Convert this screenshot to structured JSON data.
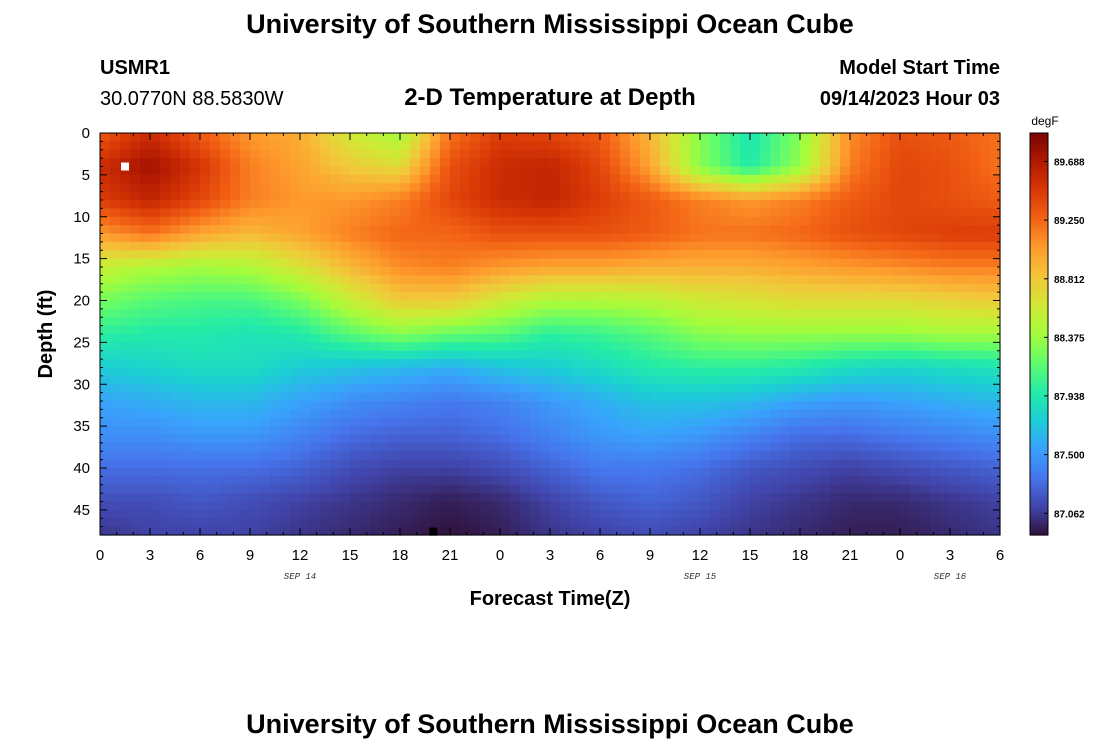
{
  "header": {
    "title": "University of Southern Mississippi Ocean Cube",
    "station_id": "USMR1",
    "station_coords": "30.0770N  88.5830W",
    "model_start_label": "Model Start Time",
    "model_start_value": "09/14/2023 Hour 03"
  },
  "footer": {
    "title": "University of Southern Mississippi Ocean Cube"
  },
  "chart_data": {
    "type": "heatmap",
    "title": "2-D Temperature at Depth",
    "xlabel": "Forecast Time(Z)",
    "ylabel": "Depth (ft)",
    "x_tick_labels": [
      "0",
      "3",
      "6",
      "9",
      "12",
      "15",
      "18",
      "21",
      "0",
      "3",
      "6",
      "9",
      "12",
      "15",
      "18",
      "21",
      "0",
      "3",
      "6"
    ],
    "x_range_hours": [
      0,
      54
    ],
    "day_labels": [
      {
        "label": "SEP 14",
        "hour": 12
      },
      {
        "label": "SEP 15",
        "hour": 36
      },
      {
        "label": "SEP 16",
        "hour": 51
      }
    ],
    "y_tick_labels": [
      "0",
      "5",
      "10",
      "15",
      "20",
      "25",
      "30",
      "35",
      "40",
      "45"
    ],
    "y_range_ft": [
      0,
      48
    ],
    "colorbar": {
      "unit": "degF",
      "labels": [
        "89.688",
        "89.250",
        "88.812",
        "88.375",
        "87.938",
        "87.500",
        "87.062"
      ],
      "range": [
        86.9,
        89.9
      ],
      "colors": [
        "#30123b",
        "#4145ab",
        "#4675ed",
        "#39a2fc",
        "#1bcfd4",
        "#24eca6",
        "#61fc6c",
        "#a4fc3b",
        "#d1e834",
        "#f3c63a",
        "#fe9b2d",
        "#f36315",
        "#d93806",
        "#b11901",
        "#7a0403"
      ]
    },
    "grid": false,
    "markers": [
      {
        "hour": 1.5,
        "depth_ft": 4,
        "color": "#ffffff"
      },
      {
        "hour": 20,
        "depth_ft": 47.6,
        "color": "#000000"
      }
    ],
    "temperature_field_degF": {
      "hours": [
        0,
        3,
        6,
        9,
        12,
        15,
        18,
        21,
        24,
        27,
        30,
        33,
        36,
        39,
        42,
        45,
        48,
        51,
        54
      ],
      "depths_ft": [
        0,
        4,
        8,
        12,
        16,
        20,
        24,
        28,
        32,
        36,
        40,
        44,
        48
      ],
      "values": [
        [
          89.3,
          89.55,
          89.3,
          89.05,
          88.95,
          88.6,
          88.4,
          89.2,
          89.45,
          89.4,
          89.3,
          88.9,
          88.3,
          87.9,
          88.3,
          89.1,
          89.35,
          89.3,
          89.2
        ],
        [
          89.55,
          89.75,
          89.5,
          89.15,
          89.0,
          88.8,
          88.7,
          89.35,
          89.55,
          89.6,
          89.4,
          89.0,
          88.3,
          87.95,
          88.35,
          89.15,
          89.4,
          89.35,
          89.2
        ],
        [
          89.45,
          89.6,
          89.4,
          89.15,
          89.05,
          89.05,
          89.15,
          89.4,
          89.55,
          89.6,
          89.45,
          89.3,
          89.15,
          89.05,
          89.15,
          89.3,
          89.4,
          89.35,
          89.3
        ],
        [
          89.05,
          89.2,
          89.0,
          88.9,
          89.0,
          89.15,
          89.25,
          89.25,
          89.35,
          89.35,
          89.35,
          89.3,
          89.2,
          89.2,
          89.25,
          89.35,
          89.4,
          89.45,
          89.45
        ],
        [
          88.55,
          88.45,
          88.4,
          88.45,
          88.65,
          88.9,
          89.1,
          89.15,
          89.05,
          89.0,
          89.0,
          88.95,
          88.95,
          88.95,
          89.0,
          89.05,
          89.1,
          89.15,
          89.15
        ],
        [
          88.25,
          88.15,
          88.1,
          88.1,
          88.25,
          88.55,
          88.8,
          88.8,
          88.6,
          88.45,
          88.45,
          88.5,
          88.6,
          88.65,
          88.7,
          88.7,
          88.7,
          88.75,
          88.8
        ],
        [
          88.0,
          87.95,
          87.95,
          87.9,
          87.95,
          88.15,
          88.3,
          88.2,
          88.15,
          88.0,
          88.05,
          88.15,
          88.3,
          88.35,
          88.35,
          88.35,
          88.35,
          88.4,
          88.4
        ],
        [
          87.75,
          87.8,
          87.85,
          87.85,
          87.75,
          87.7,
          87.65,
          87.6,
          87.7,
          87.75,
          87.85,
          87.95,
          88.0,
          88.0,
          87.95,
          87.85,
          87.8,
          87.85,
          87.9
        ],
        [
          87.55,
          87.6,
          87.65,
          87.65,
          87.55,
          87.45,
          87.4,
          87.35,
          87.4,
          87.5,
          87.6,
          87.7,
          87.7,
          87.65,
          87.55,
          87.5,
          87.55,
          87.6,
          87.65
        ],
        [
          87.45,
          87.45,
          87.5,
          87.5,
          87.4,
          87.3,
          87.25,
          87.25,
          87.3,
          87.4,
          87.5,
          87.55,
          87.5,
          87.4,
          87.3,
          87.3,
          87.35,
          87.4,
          87.45
        ],
        [
          87.3,
          87.3,
          87.3,
          87.3,
          87.25,
          87.15,
          87.1,
          87.1,
          87.15,
          87.25,
          87.35,
          87.35,
          87.3,
          87.2,
          87.15,
          87.1,
          87.15,
          87.2,
          87.25
        ],
        [
          87.15,
          87.15,
          87.2,
          87.15,
          87.1,
          87.05,
          87.0,
          86.95,
          87.0,
          87.1,
          87.2,
          87.25,
          87.2,
          87.1,
          87.05,
          87.0,
          87.0,
          87.05,
          87.1
        ],
        [
          87.05,
          87.1,
          87.1,
          87.1,
          87.05,
          87.0,
          86.95,
          86.9,
          86.95,
          87.05,
          87.1,
          87.15,
          87.1,
          87.05,
          87.0,
          86.95,
          86.95,
          87.0,
          87.05
        ]
      ]
    }
  }
}
